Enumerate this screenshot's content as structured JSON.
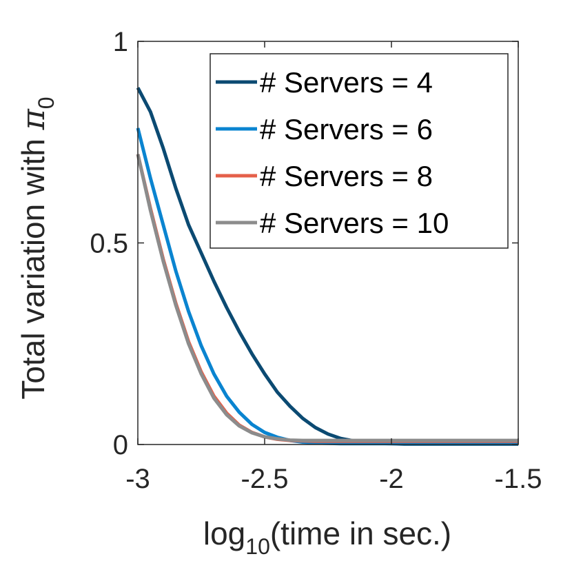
{
  "chart_data": {
    "type": "line",
    "xlabel": {
      "base": "log",
      "sub": "10",
      "rest": "(time in sec.)"
    },
    "ylabel": {
      "text": "Total variation with ",
      "symbol": "π",
      "sub": "0"
    },
    "xlim": [
      -3,
      -1.5
    ],
    "ylim": [
      0,
      1
    ],
    "xticks": [
      {
        "value": -3,
        "label": "-3"
      },
      {
        "value": -2.5,
        "label": "-2.5"
      },
      {
        "value": -2,
        "label": "-2"
      },
      {
        "value": -1.5,
        "label": "-1.5"
      }
    ],
    "yticks": [
      {
        "value": 0,
        "label": "0"
      },
      {
        "value": 0.5,
        "label": "0.5"
      },
      {
        "value": 1,
        "label": "1"
      }
    ],
    "grid": false,
    "legend_position": "top-right",
    "x": [
      -3.0,
      -2.95,
      -2.9,
      -2.85,
      -2.8,
      -2.75,
      -2.7,
      -2.65,
      -2.6,
      -2.55,
      -2.5,
      -2.45,
      -2.4,
      -2.35,
      -2.3,
      -2.25,
      -2.2,
      -2.15,
      -2.1,
      -2.05,
      -2.0,
      -1.95,
      -1.9,
      -1.85,
      -1.8,
      -1.75,
      -1.7,
      -1.65,
      -1.6,
      -1.55,
      -1.5
    ],
    "series": [
      {
        "name": "# Servers = 4",
        "color": "#0b4a72",
        "values": [
          0.885,
          0.825,
          0.735,
          0.635,
          0.545,
          0.475,
          0.405,
          0.34,
          0.28,
          0.225,
          0.175,
          0.13,
          0.095,
          0.065,
          0.042,
          0.026,
          0.015,
          0.009,
          0.005,
          0.003,
          0.002,
          0.001,
          0.001,
          0.001,
          0.001,
          0.001,
          0.001,
          0.001,
          0.001,
          0.001,
          0.001
        ]
      },
      {
        "name": "# Servers = 6",
        "color": "#0a84d0",
        "values": [
          0.785,
          0.66,
          0.545,
          0.43,
          0.33,
          0.245,
          0.175,
          0.12,
          0.08,
          0.05,
          0.03,
          0.018,
          0.01,
          0.006,
          0.004,
          0.003,
          0.002,
          0.002,
          0.002,
          0.002,
          0.002,
          0.002,
          0.002,
          0.002,
          0.002,
          0.002,
          0.002,
          0.002,
          0.002,
          0.002,
          0.002
        ]
      },
      {
        "name": "# Servers = 8",
        "color": "#e5604a",
        "values": [
          0.72,
          0.585,
          0.46,
          0.35,
          0.255,
          0.18,
          0.12,
          0.078,
          0.048,
          0.03,
          0.019,
          0.013,
          0.01,
          0.009,
          0.008,
          0.008,
          0.008,
          0.008,
          0.008,
          0.008,
          0.008,
          0.008,
          0.008,
          0.008,
          0.008,
          0.008,
          0.008,
          0.008,
          0.008,
          0.008,
          0.008
        ]
      },
      {
        "name": "# Servers = 10",
        "color": "#8c8c8c",
        "values": [
          0.72,
          0.58,
          0.455,
          0.345,
          0.25,
          0.175,
          0.115,
          0.074,
          0.046,
          0.029,
          0.019,
          0.014,
          0.011,
          0.01,
          0.01,
          0.01,
          0.01,
          0.01,
          0.01,
          0.01,
          0.01,
          0.01,
          0.01,
          0.01,
          0.01,
          0.01,
          0.01,
          0.01,
          0.01,
          0.01,
          0.01
        ]
      }
    ]
  }
}
